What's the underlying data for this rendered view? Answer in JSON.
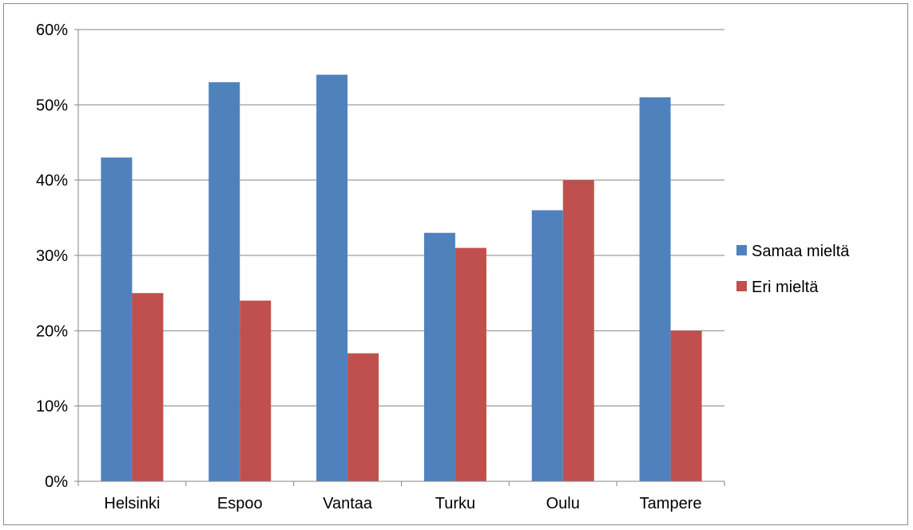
{
  "chart_data": {
    "type": "bar",
    "title": "",
    "xlabel": "",
    "ylabel": "",
    "categories": [
      "Helsinki",
      "Espoo",
      "Vantaa",
      "Turku",
      "Oulu",
      "Tampere"
    ],
    "series": [
      {
        "name": "Samaa mieltä",
        "values": [
          43,
          53,
          54,
          33,
          36,
          51
        ],
        "color": "#4F81BD"
      },
      {
        "name": "Eri mieltä",
        "values": [
          25,
          24,
          17,
          31,
          40,
          20
        ],
        "color": "#C0504D"
      }
    ],
    "ylim": [
      0,
      60
    ],
    "yticks": [
      0,
      10,
      20,
      30,
      40,
      50,
      60
    ],
    "ytick_labels": [
      "0%",
      "10%",
      "20%",
      "30%",
      "40%",
      "50%",
      "60%"
    ],
    "grid": true,
    "legend_position": "right"
  }
}
